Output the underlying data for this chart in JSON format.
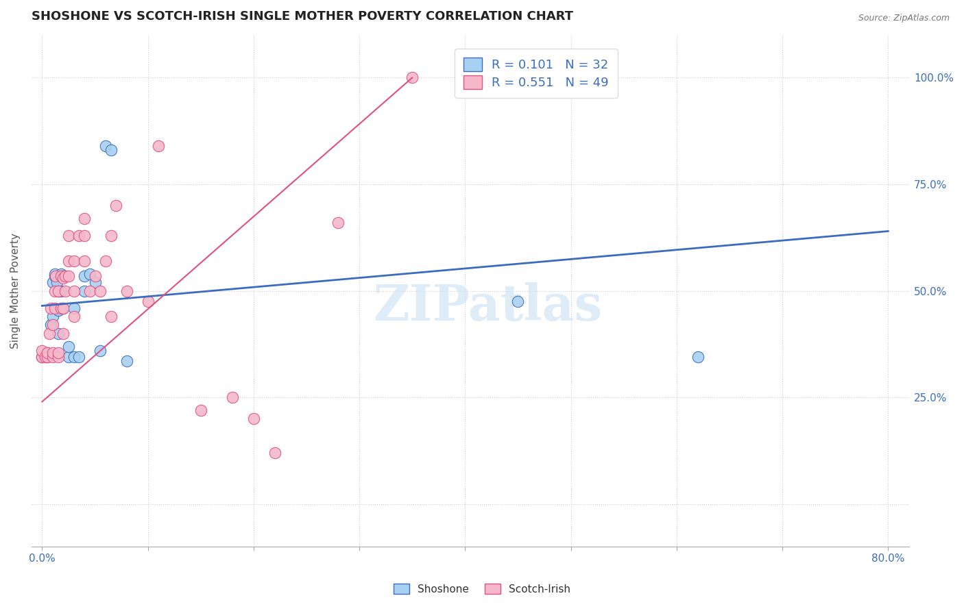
{
  "title": "SHOSHONE VS SCOTCH-IRISH SINGLE MOTHER POVERTY CORRELATION CHART",
  "source": "Source: ZipAtlas.com",
  "ylabel": "Single Mother Poverty",
  "xlim": [
    0.0,
    0.8
  ],
  "ylim": [
    -0.1,
    1.1
  ],
  "watermark": "ZIPatlas",
  "shoshone_R": 0.101,
  "shoshone_N": 32,
  "scotch_irish_R": 0.551,
  "scotch_irish_N": 49,
  "shoshone_color": "#a8d0f0",
  "scotch_irish_color": "#f5b8ca",
  "shoshone_line_color": "#3a6dbf",
  "scotch_irish_line_color": "#e05080",
  "shoshone_x": [
    0.0,
    0.005,
    0.005,
    0.008,
    0.01,
    0.01,
    0.012,
    0.012,
    0.014,
    0.015,
    0.015,
    0.015,
    0.018,
    0.018,
    0.02,
    0.02,
    0.022,
    0.025,
    0.025,
    0.03,
    0.03,
    0.035,
    0.04,
    0.04,
    0.045,
    0.05,
    0.055,
    0.06,
    0.065,
    0.08,
    0.45,
    0.62
  ],
  "shoshone_y": [
    0.345,
    0.345,
    0.355,
    0.42,
    0.44,
    0.52,
    0.535,
    0.54,
    0.52,
    0.5,
    0.455,
    0.4,
    0.5,
    0.54,
    0.535,
    0.46,
    0.535,
    0.345,
    0.37,
    0.345,
    0.46,
    0.345,
    0.5,
    0.535,
    0.54,
    0.52,
    0.36,
    0.84,
    0.83,
    0.335,
    0.475,
    0.345
  ],
  "scotch_irish_x": [
    0.0,
    0.0,
    0.003,
    0.005,
    0.005,
    0.007,
    0.008,
    0.01,
    0.01,
    0.01,
    0.012,
    0.012,
    0.013,
    0.015,
    0.015,
    0.015,
    0.018,
    0.018,
    0.02,
    0.02,
    0.02,
    0.022,
    0.022,
    0.025,
    0.025,
    0.025,
    0.03,
    0.03,
    0.03,
    0.035,
    0.04,
    0.04,
    0.04,
    0.045,
    0.05,
    0.055,
    0.06,
    0.065,
    0.065,
    0.07,
    0.08,
    0.1,
    0.11,
    0.15,
    0.18,
    0.2,
    0.22,
    0.28,
    0.35
  ],
  "scotch_irish_y": [
    0.345,
    0.36,
    0.345,
    0.345,
    0.355,
    0.4,
    0.46,
    0.345,
    0.355,
    0.42,
    0.46,
    0.5,
    0.535,
    0.345,
    0.355,
    0.5,
    0.46,
    0.535,
    0.4,
    0.46,
    0.53,
    0.5,
    0.535,
    0.535,
    0.57,
    0.63,
    0.44,
    0.5,
    0.57,
    0.63,
    0.57,
    0.63,
    0.67,
    0.5,
    0.535,
    0.5,
    0.57,
    0.44,
    0.63,
    0.7,
    0.5,
    0.475,
    0.84,
    0.22,
    0.25,
    0.2,
    0.12,
    0.66,
    1.0
  ],
  "shoshone_line_x": [
    0.0,
    0.8
  ],
  "shoshone_line_y": [
    0.465,
    0.64
  ],
  "scotch_irish_line_x": [
    0.0,
    0.35
  ],
  "scotch_irish_line_y": [
    0.24,
    1.0
  ]
}
